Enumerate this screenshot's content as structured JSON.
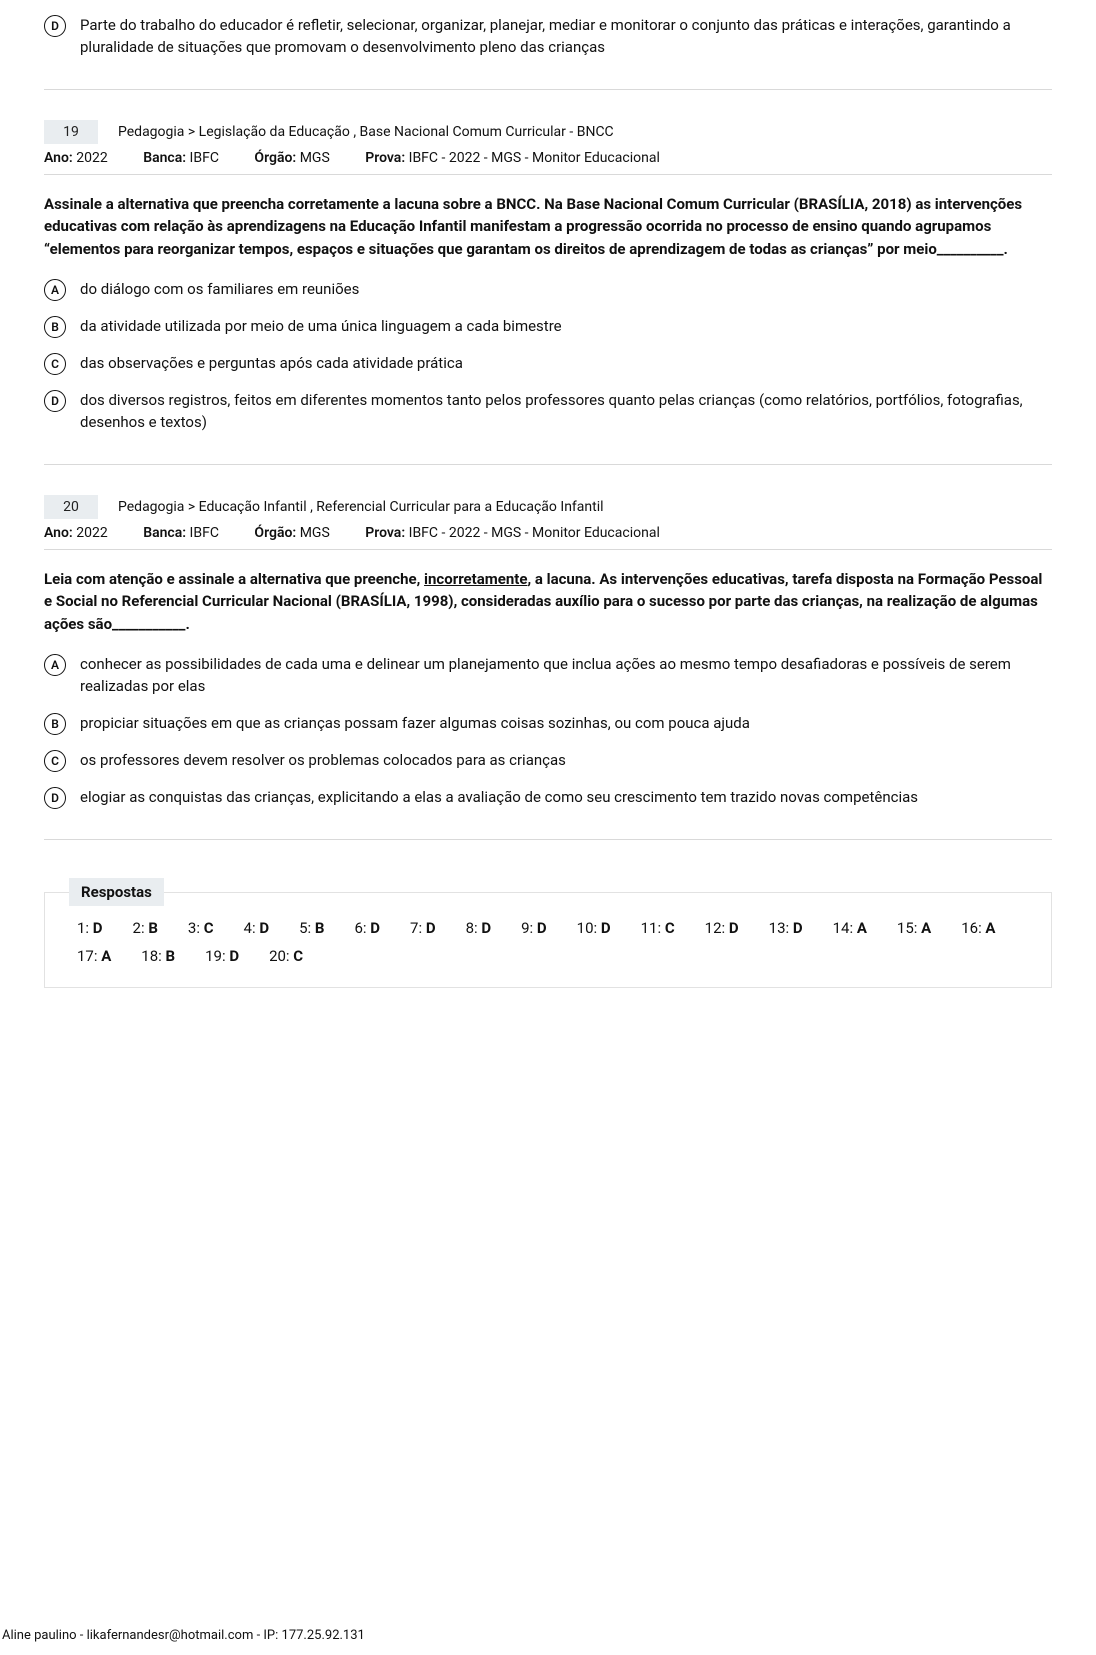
{
  "top_option": {
    "letter": "D",
    "text": "Parte do trabalho do educador é refletir, selecionar, organizar, planejar, mediar e monitorar o conjunto das práticas e interações, garantindo a pluralidade de situações que promovam o desenvolvimento pleno das crianças"
  },
  "q19": {
    "number": "19",
    "breadcrumb": "Pedagogia > Legislação da Educação , Base Nacional Comum Curricular - BNCC",
    "ano_label": "Ano:",
    "ano": "2022",
    "banca_label": "Banca:",
    "banca": "IBFC",
    "orgao_label": "Órgão:",
    "orgao": "MGS",
    "prova_label": "Prova:",
    "prova": "IBFC - 2022 - MGS - Monitor Educacional",
    "statement": "Assinale a alternativa que preencha corretamente a lacuna sobre a BNCC. Na Base Nacional Comum Curricular (BRASÍLIA, 2018) as intervenções educativas com relação às aprendizagens na Educação Infantil manifestam a progressão ocorrida no processo de ensino quando agrupamos “elementos para reorganizar tempos, espaços e situações que garantam os direitos de aprendizagem de todas as crianças” por meio__________.",
    "options": {
      "a": {
        "letter": "A",
        "text": "do diálogo com os familiares em reuniões"
      },
      "b": {
        "letter": "B",
        "text": "da atividade utilizada por meio de uma única linguagem a cada bimestre"
      },
      "c": {
        "letter": "C",
        "text": "das observações e perguntas após cada atividade prática"
      },
      "d": {
        "letter": "D",
        "text": "dos diversos registros, feitos em diferentes momentos tanto pelos professores quanto pelas crianças (como relatórios, portfólios, fotografias, desenhos e textos)"
      }
    }
  },
  "q20": {
    "number": "20",
    "breadcrumb": "Pedagogia > Educação Infantil , Referencial Curricular para a Educação Infantil",
    "ano_label": "Ano:",
    "ano": "2022",
    "banca_label": "Banca:",
    "banca": "IBFC",
    "orgao_label": "Órgão:",
    "orgao": "MGS",
    "prova_label": "Prova:",
    "prova": "IBFC - 2022 - MGS - Monitor Educacional",
    "statement_pre": "Leia com atenção e assinale a alternativa que preenche, ",
    "statement_underline": "incorretamente",
    "statement_post": ", a lacuna. As intervenções educativas, tarefa disposta na Formação Pessoal e Social no Referencial Curricular Nacional (BRASÍLIA, 1998), consideradas auxílio para o sucesso por parte das crianças, na realização de algumas ações são___________.",
    "options": {
      "a": {
        "letter": "A",
        "text": "conhecer as possibilidades de cada uma e delinear um planejamento que inclua ações ao mesmo tempo desafiadoras e possíveis de serem realizadas por elas"
      },
      "b": {
        "letter": "B",
        "text": "propiciar situações em que as crianças possam fazer algumas coisas sozinhas, ou com pouca ajuda"
      },
      "c": {
        "letter": "C",
        "text": "os professores devem resolver os problemas colocados para as crianças"
      },
      "d": {
        "letter": "D",
        "text": "elogiar as conquistas das crianças, explicitando a elas a avaliação de como seu crescimento tem trazido novas competências"
      }
    }
  },
  "answers": {
    "title": "Respostas",
    "items": [
      {
        "n": "1",
        "v": "D"
      },
      {
        "n": "2",
        "v": "B"
      },
      {
        "n": "3",
        "v": "C"
      },
      {
        "n": "4",
        "v": "D"
      },
      {
        "n": "5",
        "v": "B"
      },
      {
        "n": "6",
        "v": "D"
      },
      {
        "n": "7",
        "v": "D"
      },
      {
        "n": "8",
        "v": "D"
      },
      {
        "n": "9",
        "v": "D"
      },
      {
        "n": "10",
        "v": "D"
      },
      {
        "n": "11",
        "v": "C"
      },
      {
        "n": "12",
        "v": "D"
      },
      {
        "n": "13",
        "v": "D"
      },
      {
        "n": "14",
        "v": "A"
      },
      {
        "n": "15",
        "v": "A"
      },
      {
        "n": "16",
        "v": "A"
      },
      {
        "n": "17",
        "v": "A"
      },
      {
        "n": "18",
        "v": "B"
      },
      {
        "n": "19",
        "v": "D"
      },
      {
        "n": "20",
        "v": "C"
      }
    ]
  },
  "footer": "Aline paulino - likafernandesr@hotmail.com - IP: 177.25.92.131"
}
